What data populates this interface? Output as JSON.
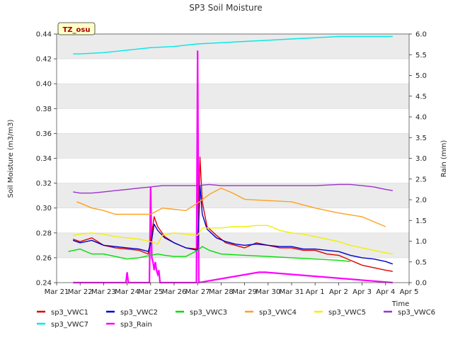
{
  "chart_data": {
    "type": "line",
    "title": "SP3 Soil Moisture",
    "xlabel": "Time",
    "ylabel": "Soil Moisture (m3/m3)",
    "y2label": "Rain (mm)",
    "badge": "TZ_osu",
    "x_ticks": [
      "Mar 21",
      "Mar 22",
      "Mar 23",
      "Mar 24",
      "Mar 25",
      "Mar 26",
      "Mar 27",
      "Mar 28",
      "Mar 29",
      "Mar 30",
      "Mar 31",
      "Apr 1",
      "Apr 2",
      "Apr 3",
      "Apr 4",
      "Apr 5"
    ],
    "xlim": [
      0,
      15
    ],
    "ylim": [
      0.24,
      0.44
    ],
    "y_ticks": [
      "0.24",
      "0.26",
      "0.28",
      "0.30",
      "0.32",
      "0.34",
      "0.36",
      "0.38",
      "0.40",
      "0.42",
      "0.44"
    ],
    "y2lim": [
      0,
      6
    ],
    "y2_ticks": [
      "0.0",
      "0.5",
      "1.0",
      "1.5",
      "2.0",
      "2.5",
      "3.0",
      "3.5",
      "4.0",
      "4.5",
      "5.0",
      "5.5",
      "6.0"
    ],
    "grid": "horizontal bands",
    "legend_position": "bottom",
    "series": [
      {
        "name": "sp3_VWC1",
        "color": "#dd0000",
        "axis": "left",
        "x": [
          0.7,
          1.0,
          1.5,
          2.0,
          2.5,
          3.0,
          3.5,
          3.9,
          4.05,
          4.15,
          4.3,
          4.6,
          5.0,
          5.5,
          6.0,
          6.05,
          6.1,
          6.2,
          6.4,
          6.8,
          7.2,
          7.6,
          8.0,
          8.5,
          9.0,
          9.5,
          10.0,
          10.5,
          11.0,
          11.5,
          12.0,
          12.5,
          13.0,
          13.5,
          14.0,
          14.3
        ],
        "y": [
          0.275,
          0.273,
          0.276,
          0.27,
          0.268,
          0.267,
          0.266,
          0.263,
          0.28,
          0.293,
          0.285,
          0.277,
          0.272,
          0.268,
          0.267,
          0.3,
          0.341,
          0.305,
          0.285,
          0.278,
          0.272,
          0.27,
          0.268,
          0.272,
          0.27,
          0.268,
          0.268,
          0.266,
          0.266,
          0.263,
          0.262,
          0.258,
          0.254,
          0.252,
          0.25,
          0.249
        ]
      },
      {
        "name": "sp3_VWC2",
        "color": "#0000cc",
        "axis": "left",
        "x": [
          0.7,
          1.0,
          1.5,
          2.0,
          2.5,
          3.0,
          3.5,
          3.9,
          4.05,
          4.15,
          4.3,
          4.6,
          5.0,
          5.5,
          6.0,
          6.05,
          6.1,
          6.2,
          6.4,
          6.8,
          7.2,
          7.6,
          8.0,
          8.5,
          9.0,
          9.5,
          10.0,
          10.5,
          11.0,
          11.5,
          12.0,
          12.5,
          13.0,
          13.5,
          14.0,
          14.3
        ],
        "y": [
          0.274,
          0.272,
          0.274,
          0.27,
          0.269,
          0.268,
          0.267,
          0.265,
          0.275,
          0.287,
          0.282,
          0.276,
          0.272,
          0.268,
          0.266,
          0.29,
          0.318,
          0.295,
          0.283,
          0.276,
          0.273,
          0.271,
          0.27,
          0.271,
          0.27,
          0.269,
          0.269,
          0.267,
          0.267,
          0.266,
          0.265,
          0.262,
          0.26,
          0.259,
          0.257,
          0.255
        ]
      },
      {
        "name": "sp3_VWC3",
        "color": "#00dd00",
        "axis": "left",
        "x": [
          0.5,
          1.0,
          1.5,
          2.0,
          2.5,
          3.0,
          3.5,
          4.0,
          4.3,
          4.6,
          5.0,
          5.5,
          6.0,
          6.2,
          6.5,
          7.0,
          8.0,
          9.0,
          10.0,
          11.0,
          12.0,
          12.5
        ],
        "y": [
          0.265,
          0.267,
          0.263,
          0.263,
          0.261,
          0.259,
          0.26,
          0.262,
          0.263,
          0.262,
          0.261,
          0.261,
          0.266,
          0.269,
          0.266,
          0.263,
          0.262,
          0.261,
          0.26,
          0.259,
          0.258,
          0.257
        ]
      },
      {
        "name": "sp3_VWC4",
        "color": "#ffa020",
        "axis": "left",
        "x": [
          0.85,
          1.0,
          1.5,
          2.0,
          2.5,
          3.0,
          3.5,
          4.0,
          4.5,
          5.0,
          5.5,
          6.0,
          6.5,
          7.0,
          7.5,
          8.0,
          9.0,
          10.0,
          11.0,
          12.0,
          13.0,
          14.0
        ],
        "y": [
          0.305,
          0.304,
          0.3,
          0.298,
          0.295,
          0.295,
          0.295,
          0.295,
          0.3,
          0.299,
          0.298,
          0.304,
          0.311,
          0.316,
          0.312,
          0.307,
          0.306,
          0.305,
          0.3,
          0.296,
          0.293,
          0.285
        ]
      },
      {
        "name": "sp3_VWC5",
        "color": "#f0f000",
        "axis": "left",
        "x": [
          0.7,
          1.0,
          1.5,
          2.0,
          2.5,
          3.0,
          3.5,
          4.0,
          4.3,
          4.5,
          5.0,
          5.5,
          6.0,
          6.2,
          6.5,
          7.0,
          7.5,
          8.0,
          8.5,
          9.0,
          9.5,
          10.0,
          10.5,
          11.0,
          11.5,
          12.0,
          12.5,
          13.0,
          13.5,
          14.0,
          14.3
        ],
        "y": [
          0.278,
          0.279,
          0.28,
          0.279,
          0.277,
          0.276,
          0.275,
          0.273,
          0.271,
          0.278,
          0.28,
          0.279,
          0.278,
          0.284,
          0.284,
          0.284,
          0.285,
          0.285,
          0.286,
          0.286,
          0.282,
          0.28,
          0.279,
          0.277,
          0.275,
          0.273,
          0.27,
          0.268,
          0.266,
          0.264,
          0.263
        ]
      },
      {
        "name": "sp3_VWC6",
        "color": "#9933cc",
        "axis": "left",
        "x": [
          0.7,
          1.0,
          1.5,
          2.0,
          2.5,
          3.0,
          3.5,
          4.0,
          4.5,
          5.0,
          5.5,
          6.0,
          6.5,
          7.0,
          8.0,
          9.0,
          10.0,
          11.0,
          12.0,
          12.5,
          13.0,
          13.5,
          14.0,
          14.3
        ],
        "y": [
          0.313,
          0.312,
          0.312,
          0.313,
          0.314,
          0.315,
          0.316,
          0.317,
          0.318,
          0.318,
          0.318,
          0.318,
          0.319,
          0.318,
          0.318,
          0.318,
          0.318,
          0.318,
          0.319,
          0.319,
          0.318,
          0.317,
          0.315,
          0.314
        ]
      },
      {
        "name": "sp3_VWC7",
        "color": "#00e8e8",
        "axis": "left",
        "x": [
          0.7,
          1.0,
          2.0,
          3.0,
          4.0,
          5.0,
          6.0,
          7.0,
          8.0,
          9.0,
          10.0,
          11.0,
          12.0,
          13.0,
          14.0,
          14.3
        ],
        "y": [
          0.424,
          0.424,
          0.425,
          0.427,
          0.429,
          0.43,
          0.432,
          0.433,
          0.434,
          0.435,
          0.436,
          0.437,
          0.438,
          0.438,
          0.438,
          0.438
        ]
      },
      {
        "name": "sp3_Rain",
        "color": "#ff00ff",
        "axis": "right",
        "type": "rain",
        "x": [
          0.7,
          2.95,
          3.0,
          3.05,
          3.95,
          4.0,
          4.05,
          4.1,
          4.15,
          4.2,
          4.25,
          4.3,
          4.35,
          4.4,
          5.95,
          6.0,
          6.05,
          8.6,
          8.7,
          8.8,
          8.9,
          14.3
        ],
        "y": [
          0.0,
          0.0,
          0.25,
          0.0,
          0.0,
          2.3,
          0.6,
          0.5,
          0.3,
          0.5,
          0.3,
          0.2,
          0.3,
          0.0,
          0.0,
          5.6,
          0.0,
          0.25,
          0.25,
          0.25,
          0.25,
          0.0
        ]
      }
    ]
  }
}
